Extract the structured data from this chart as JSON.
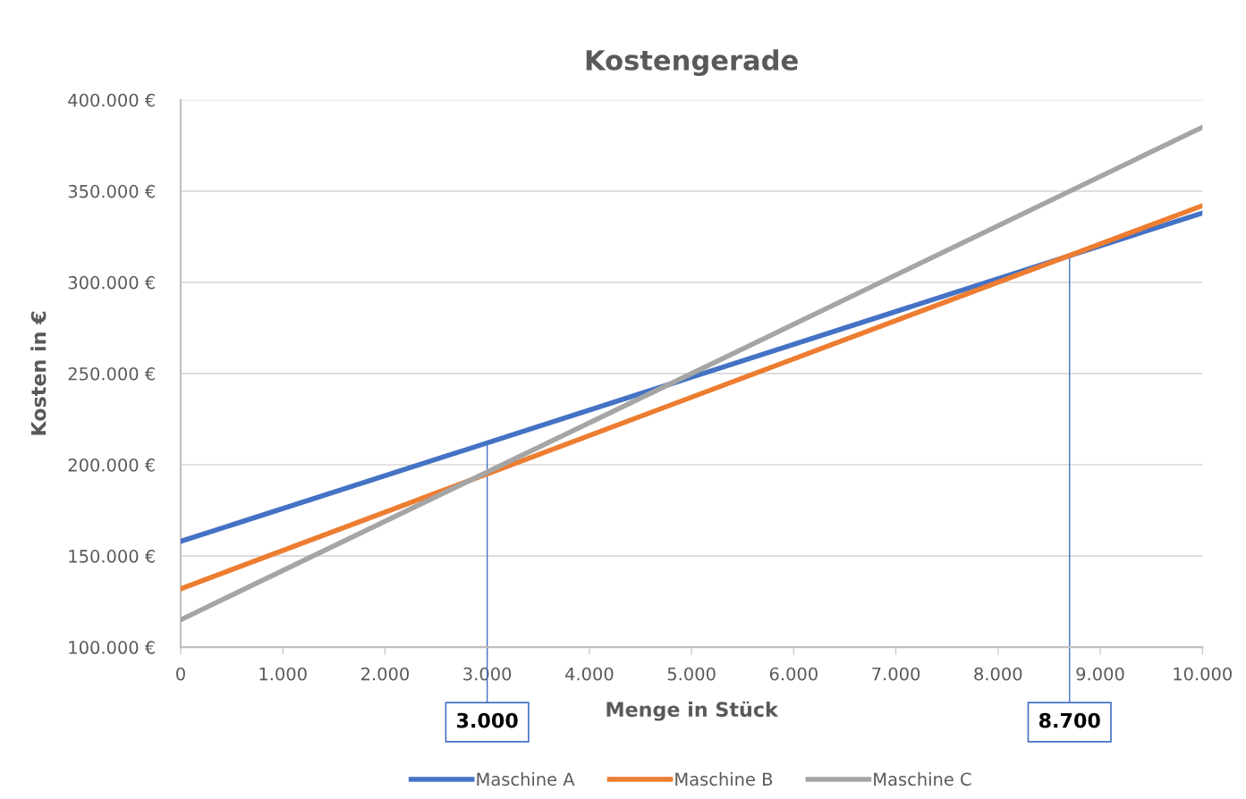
{
  "chart_data": {
    "type": "line",
    "title": "Kostengerade",
    "xlabel": "Menge in Stück",
    "ylabel": "Kosten in €",
    "x": [
      0,
      10000
    ],
    "series": [
      {
        "name": "Maschine A",
        "color": "#4472c4",
        "values": [
          158000,
          338000
        ]
      },
      {
        "name": "Maschine B",
        "color": "#ed7d31",
        "values": [
          132000,
          342000
        ]
      },
      {
        "name": "Maschine C",
        "color": "#a5a5a5",
        "values": [
          115000,
          385000
        ]
      }
    ],
    "xlim": [
      0,
      10000
    ],
    "xticks": [
      {
        "value": 0,
        "label": "0"
      },
      {
        "value": 1000,
        "label": "1.000"
      },
      {
        "value": 2000,
        "label": "2.000"
      },
      {
        "value": 3000,
        "label": "3.000"
      },
      {
        "value": 4000,
        "label": "4.000"
      },
      {
        "value": 5000,
        "label": "5.000"
      },
      {
        "value": 6000,
        "label": "6.000"
      },
      {
        "value": 7000,
        "label": "7.000"
      },
      {
        "value": 8000,
        "label": "8.000"
      },
      {
        "value": 9000,
        "label": "9.000"
      },
      {
        "value": 10000,
        "label": "10.000"
      }
    ],
    "ylim": [
      100000,
      400000
    ],
    "yticks": [
      {
        "value": 100000,
        "label": "100.000 €"
      },
      {
        "value": 150000,
        "label": "150.000 €"
      },
      {
        "value": 200000,
        "label": "200.000 €"
      },
      {
        "value": 250000,
        "label": "250.000 €"
      },
      {
        "value": 300000,
        "label": "300.000 €"
      },
      {
        "value": 350000,
        "label": "350.000 €"
      },
      {
        "value": 400000,
        "label": "400.000 €"
      }
    ],
    "ref_lines": [
      {
        "axis": "x",
        "value": 3000,
        "label": "3.000",
        "color": "#4472c4"
      },
      {
        "axis": "x",
        "value": 8700,
        "label": "8.700",
        "color": "#4472c4"
      }
    ],
    "grid": "y",
    "legend": "bottom",
    "marker": "none",
    "line_style": "solid"
  }
}
